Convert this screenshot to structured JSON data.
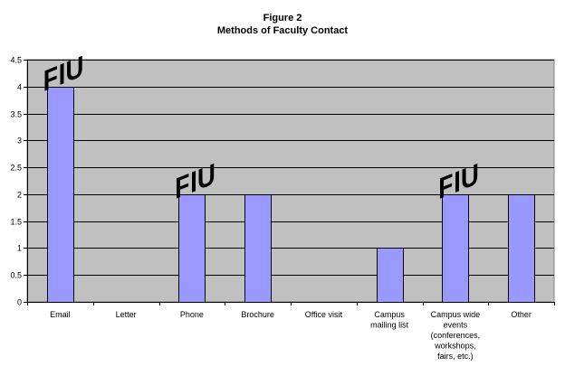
{
  "chart_data": {
    "type": "bar",
    "title": "Figure 2",
    "subtitle": "Methods of Faculty Contact",
    "categories": [
      [
        "Email"
      ],
      [
        "Letter"
      ],
      [
        "Phone"
      ],
      [
        "Brochure"
      ],
      [
        "Office visit"
      ],
      [
        "Campus",
        "mailing list"
      ],
      [
        "Campus wide",
        "events",
        "(conferences,",
        "workshops,",
        "fairs, etc.)"
      ],
      [
        "Other"
      ]
    ],
    "values": [
      4,
      0,
      2,
      2,
      0,
      1,
      2,
      2
    ],
    "ylim": [
      0,
      4.5
    ],
    "yticks": [
      "0",
      "0.5",
      "1",
      "1.5",
      "2",
      "2.5",
      "3",
      "3.5",
      "4",
      "4.5"
    ],
    "xlabel": "",
    "ylabel": "",
    "grid": true,
    "logo_markers": [
      0,
      2,
      6
    ],
    "logo_text": "FIU",
    "colors": {
      "bar": "#9999ff",
      "plot_bg": "#c0c0c0",
      "grid": "#000000"
    }
  }
}
